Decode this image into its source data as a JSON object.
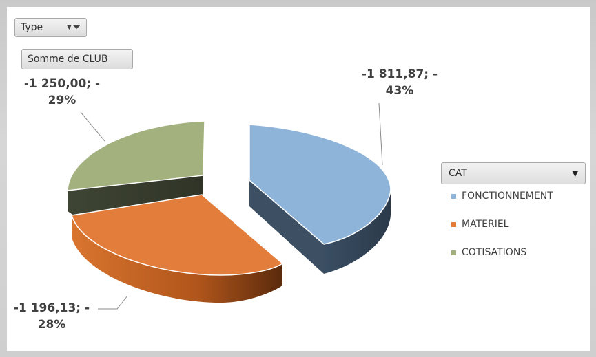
{
  "filters": {
    "type_label": "Type",
    "values_label": "Somme de CLUB"
  },
  "legend": {
    "title": "CAT",
    "items": [
      {
        "label": "FONCTIONNEMENT",
        "color": "#8fb4d9"
      },
      {
        "label": "MATERIEL",
        "color": "#e37d3c"
      },
      {
        "label": "COTISATIONS",
        "color": "#a3b17f"
      }
    ]
  },
  "chart_data": {
    "type": "pie",
    "categories": [
      "FONCTIONNEMENT",
      "MATERIEL",
      "COTISATIONS"
    ],
    "values": [
      -1811.87,
      -1196.13,
      -1250.0
    ],
    "percentages": [
      43,
      28,
      29
    ],
    "data_labels": [
      {
        "line1": "-1 811,87; -",
        "line2": "43%"
      },
      {
        "line1": "-1 196,13; -",
        "line2": "28%"
      },
      {
        "line1": "-1 250,00; -",
        "line2": "29%"
      }
    ],
    "legend_position": "right",
    "exploded": true,
    "style": "3d"
  }
}
